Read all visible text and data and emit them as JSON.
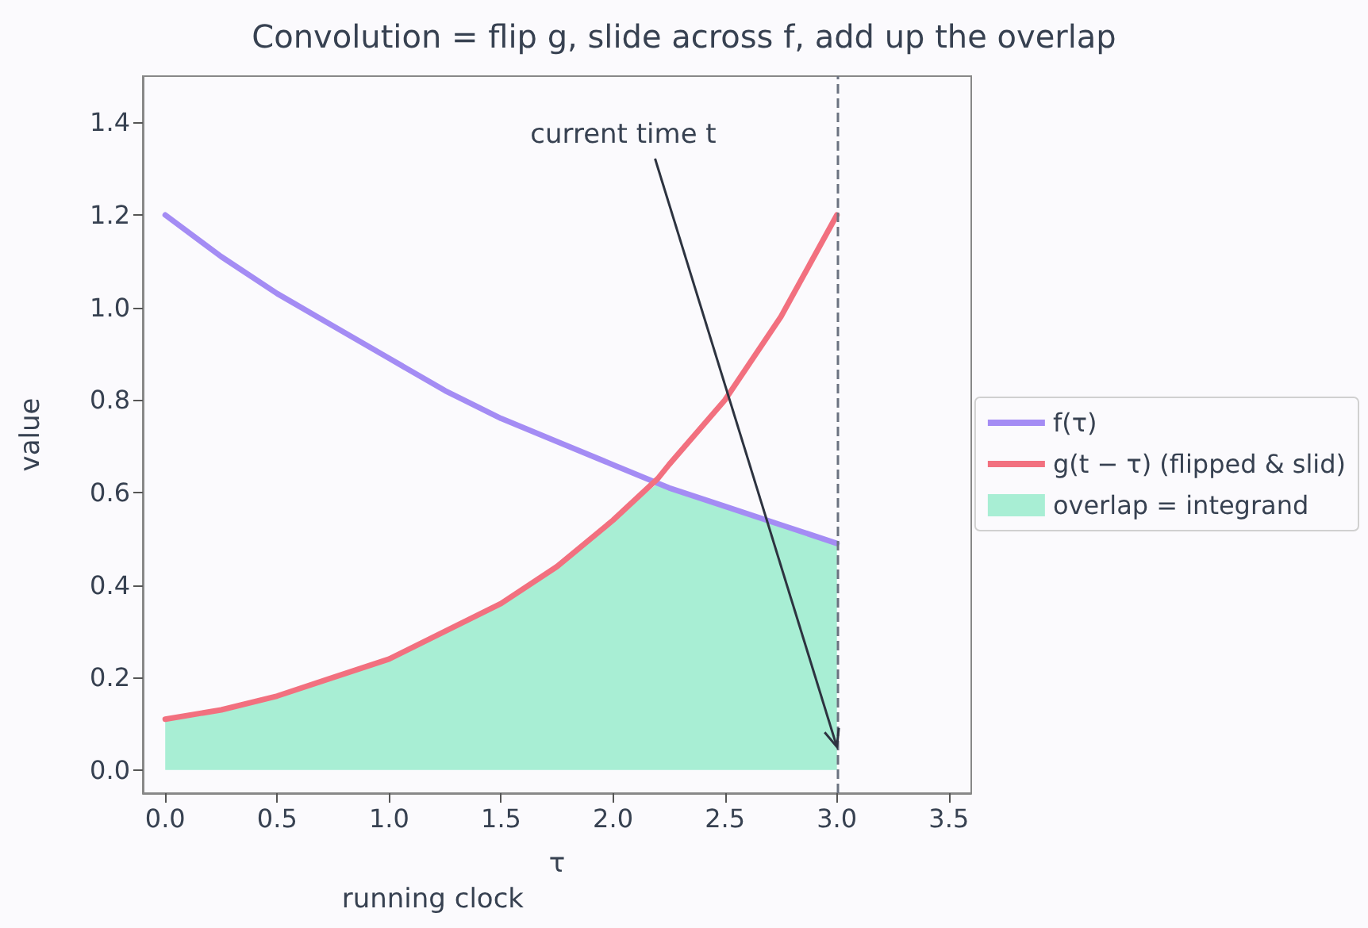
{
  "chart_data": {
    "type": "line",
    "title": "Convolution = flip g, slide across f, add up the overlap",
    "xlabel": "τ",
    "ylabel": "value",
    "x": [
      0,
      0.25,
      0.5,
      0.75,
      1,
      1.25,
      1.5,
      1.75,
      2,
      2.2,
      2.25,
      2.5,
      2.75,
      3
    ],
    "series": [
      {
        "name": "f(τ)",
        "color": "#a48cf4",
        "values": [
          1.2,
          1.11,
          1.03,
          0.96,
          0.89,
          0.82,
          0.76,
          0.71,
          0.66,
          0.62,
          0.61,
          0.57,
          0.53,
          0.49
        ]
      },
      {
        "name": "g(t − τ) (flipped & slid)",
        "color": "#f2707f",
        "values": [
          0.11,
          0.13,
          0.16,
          0.2,
          0.24,
          0.3,
          0.36,
          0.44,
          0.54,
          0.63,
          0.66,
          0.8,
          0.98,
          1.2
        ]
      },
      {
        "name": "overlap = integrand",
        "type": "area",
        "color": "#a8eed4",
        "values": [
          0.11,
          0.13,
          0.16,
          0.2,
          0.24,
          0.3,
          0.36,
          0.44,
          0.54,
          0.62,
          0.61,
          0.57,
          0.53,
          0.49
        ]
      }
    ],
    "xlim": [
      -0.1,
      3.6
    ],
    "xticks": [
      {
        "value": 0,
        "label": "0.0"
      },
      0.5,
      {
        "value": 1,
        "label": "1.0"
      },
      1.5,
      {
        "value": 2,
        "label": "2.0"
      },
      2.5,
      {
        "value": 3,
        "label": "3.0"
      },
      3.5
    ],
    "ylim": [
      -0.05,
      1.5
    ],
    "yticks": [
      {
        "value": 0,
        "label": "0.0"
      },
      0.2,
      0.4,
      0.6,
      0.8,
      {
        "value": 1,
        "label": "1.0"
      },
      1.2,
      1.4
    ],
    "ref_lines": [
      {
        "axis": "x",
        "value": 3,
        "color": "#6b7280",
        "line_style": "dashed"
      }
    ],
    "annotations": [
      {
        "text": "current time t",
        "x": 3,
        "y": 0.05
      },
      "running clock"
    ],
    "grid": false,
    "legend": "right",
    "marker": "none",
    "line_style": "solid"
  }
}
